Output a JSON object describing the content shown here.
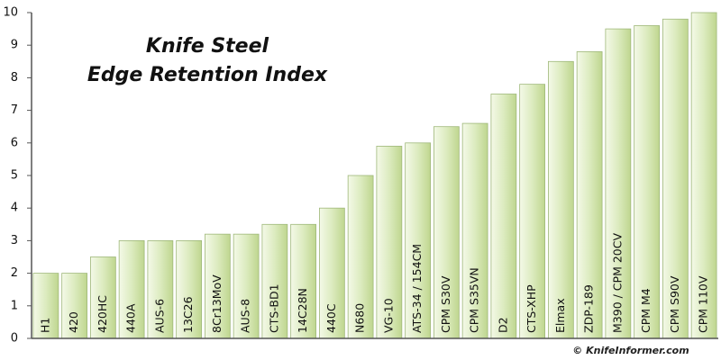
{
  "chart_data": {
    "type": "bar",
    "title": [
      "Knife Steel",
      "Edge Retention Index"
    ],
    "categories": [
      "H1",
      "420",
      "420HC",
      "440A",
      "AUS-6",
      "13C26",
      "8Cr13MoV",
      "AUS-8",
      "CTS-BD1",
      "14C28N",
      "440C",
      "N680",
      "VG-10",
      "ATS-34 / 154CM",
      "CPM S30V",
      "CPM S35VN",
      "D2",
      "CTS-XHP",
      "Elmax",
      "ZDP-189",
      "M390 / CPM 20CV",
      "CPM M4",
      "CPM S90V",
      "CPM 110V"
    ],
    "values": [
      2,
      2,
      2.5,
      3,
      3,
      3,
      3.2,
      3.2,
      3.5,
      3.5,
      4,
      5,
      5.9,
      6,
      6.5,
      6.6,
      7.5,
      7.8,
      8.5,
      8.8,
      9.5,
      9.6,
      9.8,
      10
    ],
    "color": "#d4e6b0",
    "ylim": [
      0,
      10
    ],
    "yticks": [
      0,
      1,
      2,
      3,
      4,
      5,
      6,
      7,
      8,
      9,
      10
    ],
    "watermark": "© KnifeInformer.com"
  }
}
